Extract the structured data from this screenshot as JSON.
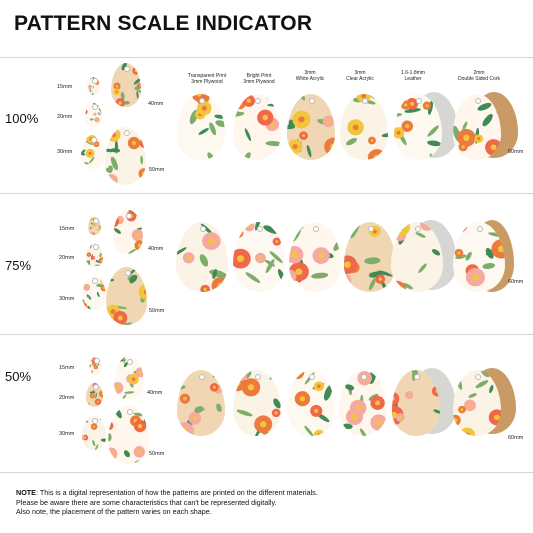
{
  "title": "PATTERN SCALE INDICATOR",
  "sizes": [
    "15mm",
    "20mm",
    "30mm",
    "40mm",
    "50mm"
  ],
  "large_size": "60mm",
  "materials": [
    {
      "line1": "Transparent Print",
      "line2": "3mm Plywood"
    },
    {
      "line1": "Bright Print",
      "line2": "3mm Plywood"
    },
    {
      "line1": "3mm",
      "line2": "White Acrylic"
    },
    {
      "line1": "3mm",
      "line2": "Clear Acrylic"
    },
    {
      "line1": "1.6-1.8mm",
      "line2": "Leather"
    },
    {
      "line1": "2mm",
      "line2": "Double Sided Cork"
    }
  ],
  "sections": [
    {
      "scale": "100%"
    },
    {
      "scale": "75%"
    },
    {
      "scale": "50%"
    }
  ],
  "note": {
    "label": "NOTE",
    "line1": ": This is a digital representation of how the patterns are printed on the different materials.",
    "line2": "Please be aware there are some characteristics that can't be represented digitally.",
    "line3": "Also note, the placement of the pattern varies on each shape."
  },
  "colors": {
    "orange": "#ec7a3c",
    "coral": "#f0674a",
    "yellow": "#f2c53d",
    "pink": "#f5a9a0",
    "green": "#3f8a55",
    "leaf": "#7cae6a",
    "cork": "#c99a64",
    "leather": "#d6d6d2",
    "plywood": "#f1d6b3"
  },
  "icons": [
    "floral-teardrop-icon",
    "cork-back-icon",
    "leather-back-icon"
  ]
}
